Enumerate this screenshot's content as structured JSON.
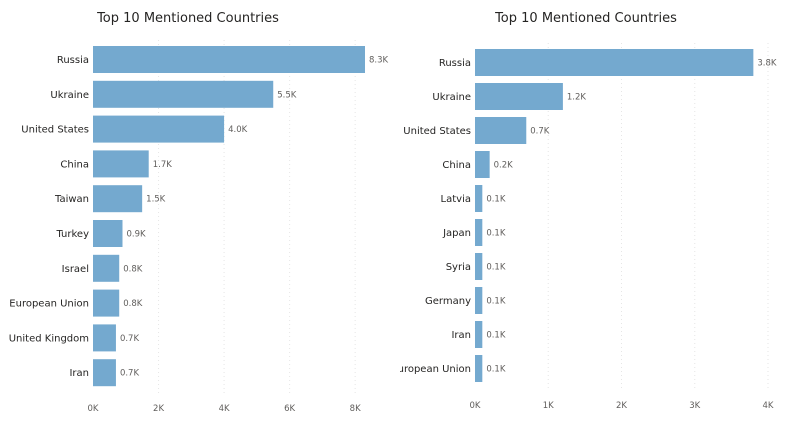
{
  "chart_data": [
    {
      "type": "bar",
      "orientation": "horizontal",
      "title": "Top 10 Mentioned Countries",
      "categories": [
        "Russia",
        "Ukraine",
        "United States",
        "China",
        "Taiwan",
        "Turkey",
        "Israel",
        "European Union",
        "United Kingdom",
        "Iran"
      ],
      "values": [
        8.3,
        5.5,
        4.0,
        1.7,
        1.5,
        0.9,
        0.8,
        0.8,
        0.7,
        0.7
      ],
      "value_labels": [
        "8.3K",
        "5.5K",
        "4.0K",
        "1.7K",
        "1.5K",
        "0.9K",
        "0.8K",
        "0.8K",
        "0.7K",
        "0.7K"
      ],
      "ticks": [
        0,
        2,
        4,
        6,
        8
      ],
      "tick_labels": [
        "0K",
        "2K",
        "4K",
        "6K",
        "8K"
      ],
      "xlim": [
        0,
        8.3
      ],
      "grid": true,
      "color": "#74a9cf"
    },
    {
      "type": "bar",
      "orientation": "horizontal",
      "title": "Top 10 Mentioned Countries",
      "categories": [
        "Russia",
        "Ukraine",
        "United States",
        "China",
        "Latvia",
        "Japan",
        "Syria",
        "Germany",
        "Iran",
        "European Union"
      ],
      "values": [
        3.8,
        1.2,
        0.7,
        0.2,
        0.1,
        0.1,
        0.1,
        0.1,
        0.1,
        0.1
      ],
      "value_labels": [
        "3.8K",
        "1.2K",
        "0.7K",
        "0.2K",
        "0.1K",
        "0.1K",
        "0.1K",
        "0.1K",
        "0.1K",
        "0.1K"
      ],
      "ticks": [
        0,
        1,
        2,
        3,
        4
      ],
      "tick_labels": [
        "0K",
        "1K",
        "2K",
        "3K",
        "4K"
      ],
      "xlim": [
        0,
        4
      ],
      "grid": true,
      "color": "#74a9cf"
    }
  ]
}
